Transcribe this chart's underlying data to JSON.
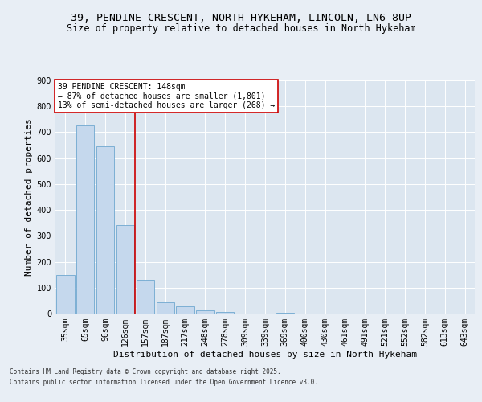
{
  "title_line1": "39, PENDINE CRESCENT, NORTH HYKEHAM, LINCOLN, LN6 8UP",
  "title_line2": "Size of property relative to detached houses in North Hykeham",
  "xlabel": "Distribution of detached houses by size in North Hykeham",
  "ylabel": "Number of detached properties",
  "footer_line1": "Contains HM Land Registry data © Crown copyright and database right 2025.",
  "footer_line2": "Contains public sector information licensed under the Open Government Licence v3.0.",
  "categories": [
    "35sqm",
    "65sqm",
    "96sqm",
    "126sqm",
    "157sqm",
    "187sqm",
    "217sqm",
    "248sqm",
    "278sqm",
    "309sqm",
    "339sqm",
    "369sqm",
    "400sqm",
    "430sqm",
    "461sqm",
    "491sqm",
    "521sqm",
    "552sqm",
    "582sqm",
    "613sqm",
    "643sqm"
  ],
  "values": [
    150,
    725,
    645,
    340,
    130,
    42,
    28,
    13,
    5,
    0,
    0,
    3,
    0,
    0,
    0,
    0,
    0,
    0,
    0,
    0,
    0
  ],
  "bar_color": "#c5d8ed",
  "bar_edge_color": "#6fa8d0",
  "vline_color": "#cc0000",
  "vline_x": 3.5,
  "annotation_text": "39 PENDINE CRESCENT: 148sqm\n← 87% of detached houses are smaller (1,801)\n13% of semi-detached houses are larger (268) →",
  "annotation_box_color": "#ffffff",
  "annotation_box_edge": "#cc0000",
  "background_color": "#e8eef5",
  "plot_bg_color": "#dce6f0",
  "ylim": [
    0,
    900
  ],
  "yticks": [
    0,
    100,
    200,
    300,
    400,
    500,
    600,
    700,
    800,
    900
  ],
  "title_fontsize": 9.5,
  "subtitle_fontsize": 8.5,
  "axis_label_fontsize": 8,
  "tick_fontsize": 7,
  "footer_fontsize": 5.5,
  "annotation_fontsize": 7
}
